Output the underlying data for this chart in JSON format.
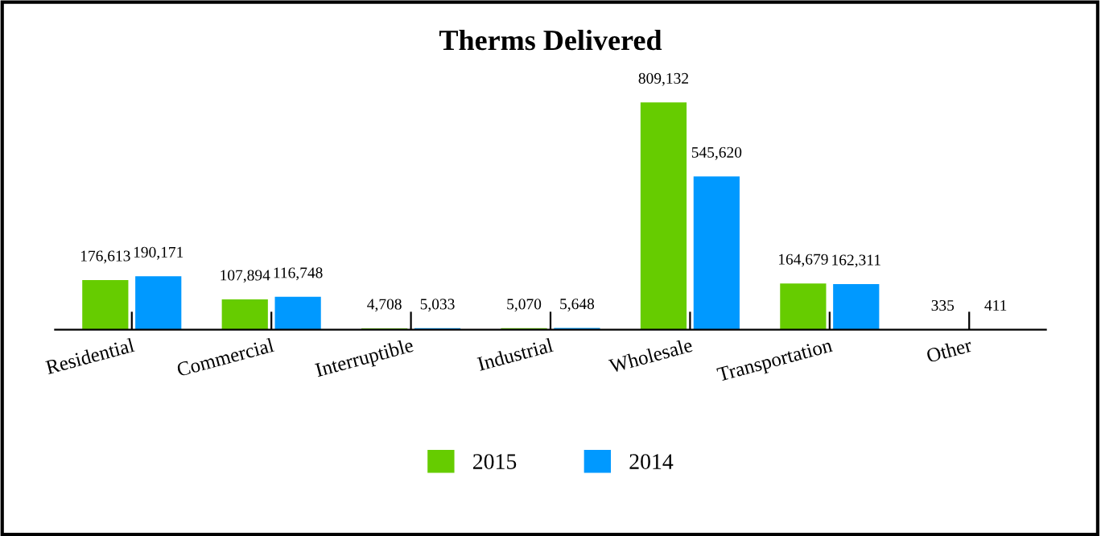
{
  "chart_data": {
    "type": "bar",
    "title": "Therms Delivered",
    "categories": [
      "Residential",
      "Commercial",
      "Interruptible",
      "Industrial",
      "Wholesale",
      "Transportation",
      "Other"
    ],
    "series": [
      {
        "name": "2015",
        "color": "#66cc00",
        "values": [
          176613,
          107894,
          4708,
          5070,
          809132,
          164679,
          335
        ],
        "value_labels": [
          "176,613",
          "107,894",
          "4,708",
          "5,070",
          "809,132",
          "164,679",
          "335"
        ]
      },
      {
        "name": "2014",
        "color": "#0099ff",
        "values": [
          190171,
          116748,
          5033,
          5648,
          545620,
          162311,
          411
        ],
        "value_labels": [
          "190,171",
          "116,748",
          "5,033",
          "5,648",
          "545,620",
          "162,311",
          "411"
        ]
      }
    ],
    "legend": "bottom",
    "grid": false
  }
}
